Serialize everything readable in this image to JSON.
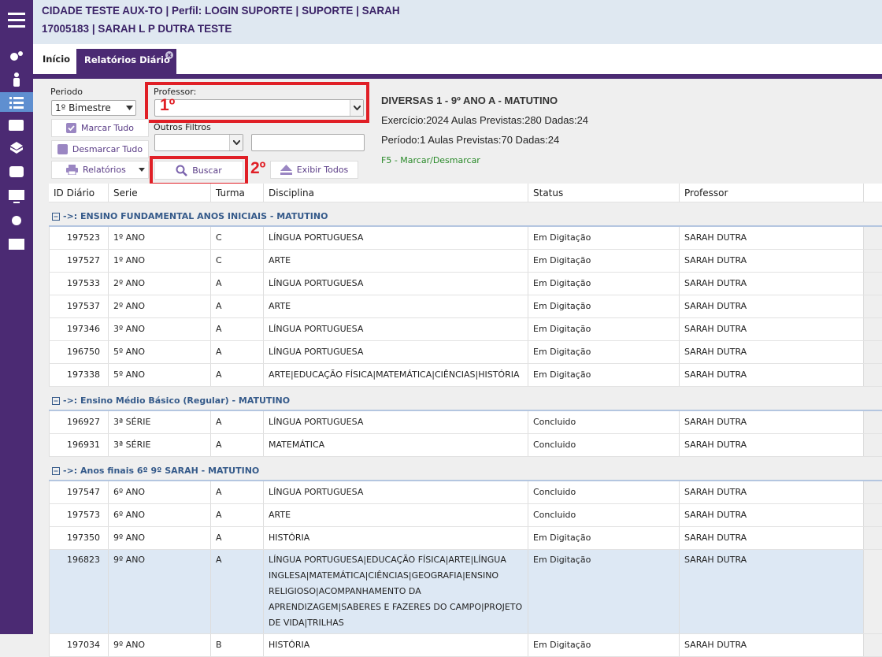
{
  "header": {
    "line1": "CIDADE TESTE AUX-TO | Perfil: LOGIN SUPORTE | SUPORTE | SARAH",
    "line2": "17005183 | SARAH L P DUTRA TESTE"
  },
  "tabs": [
    "Início",
    "Relatórios Diário"
  ],
  "filters": {
    "periodo_label": "Periodo",
    "periodo_value": "1º Bimestre",
    "professor_label": "Professor:",
    "step1": "1º",
    "outros_filtros": "Outros Filtros",
    "marcar": "Marcar Tudo",
    "desmarcar": "Desmarcar Tudo",
    "relatorios": "Relatórios",
    "buscar": "Buscar",
    "step2": "2º",
    "exibir": "Exibir Todos"
  },
  "info": {
    "title": "DIVERSAS 1 - 9º ANO A - MATUTINO",
    "exercicio": "Exercício:2024 Aulas Previstas:280 Dadas:24",
    "periodo": "Período:1 Aulas Previstas:70 Dadas:24",
    "hint": "F5 - Marcar/Desmarcar"
  },
  "table": {
    "columns": [
      "ID Diário",
      "Serie",
      "Turma",
      "Disciplina",
      "Status",
      "Professor"
    ],
    "groups": [
      {
        "title": "->: ENSINO FUNDAMENTAL ANOS INICIAIS - MATUTINO",
        "rows": [
          [
            "197523",
            "1º ANO",
            "C",
            "LÍNGUA PORTUGUESA",
            "Em Digitação",
            "SARAH DUTRA"
          ],
          [
            "197527",
            "1º ANO",
            "C",
            "ARTE",
            "Em Digitação",
            "SARAH DUTRA"
          ],
          [
            "197533",
            "2º ANO",
            "A",
            "LÍNGUA PORTUGUESA",
            "Em Digitação",
            "SARAH DUTRA"
          ],
          [
            "197537",
            "2º ANO",
            "A",
            "ARTE",
            "Em Digitação",
            "SARAH DUTRA"
          ],
          [
            "197346",
            "3º ANO",
            "A",
            "LÍNGUA PORTUGUESA",
            "Em Digitação",
            "SARAH DUTRA"
          ],
          [
            "196750",
            "5º ANO",
            "A",
            "LÍNGUA PORTUGUESA",
            "Em Digitação",
            "SARAH DUTRA"
          ],
          [
            "197338",
            "5º ANO",
            "A",
            "ARTE|EDUCAÇÃO FÍSICA|MATEMÁTICA|CIÊNCIAS|HISTÓRIA",
            "Em Digitação",
            "SARAH DUTRA"
          ]
        ]
      },
      {
        "title": "->: Ensino Médio Básico (Regular) - MATUTINO",
        "rows": [
          [
            "196927",
            "3ª SÉRIE",
            "A",
            "LÍNGUA PORTUGUESA",
            "Concluido",
            "SARAH DUTRA"
          ],
          [
            "196931",
            "3ª SÉRIE",
            "A",
            "MATEMÁTICA",
            "Concluido",
            "SARAH DUTRA"
          ]
        ]
      },
      {
        "title": "->: Anos finais 6º 9º SARAH - MATUTINO",
        "rows": [
          [
            "197547",
            "6º ANO",
            "A",
            "LÍNGUA PORTUGUESA",
            "Concluido",
            "SARAH DUTRA"
          ],
          [
            "197573",
            "6º ANO",
            "A",
            "ARTE",
            "Concluido",
            "SARAH DUTRA"
          ],
          [
            "197350",
            "9º ANO",
            "A",
            "HISTÓRIA",
            "Em Digitação",
            "SARAH DUTRA"
          ],
          [
            "196823",
            "9º ANO",
            "A",
            "LÍNGUA PORTUGUESA|EDUCAÇÃO FÍSICA|ARTE|LÍNGUA INGLESA|MATEMÁTICA|CIÊNCIAS|GEOGRAFIA|ENSINO RELIGIOSO|ACOMPANHAMENTO DA APRENDIZAGEM|SABERES E FAZERES DO CAMPO|PROJETO DE VIDA|TRILHAS",
            "Em Digitação",
            "SARAH DUTRA"
          ],
          [
            "197034",
            "9º ANO",
            "B",
            "HISTÓRIA",
            "Em Digitação",
            "SARAH DUTRA"
          ]
        ]
      }
    ]
  }
}
